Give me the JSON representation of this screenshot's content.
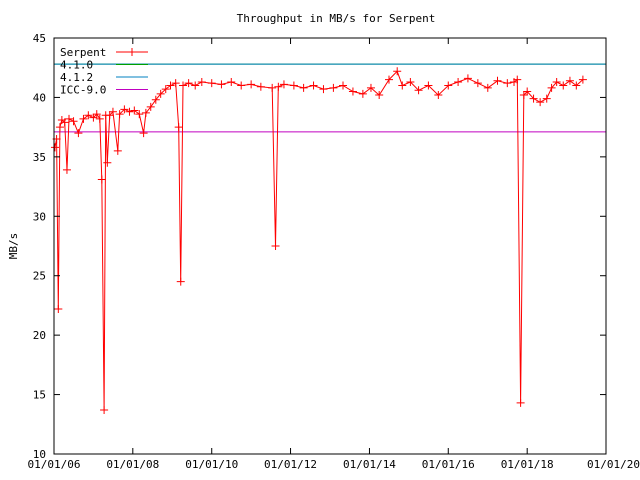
{
  "chart_data": {
    "type": "line",
    "title": "Throughput in MB/s for Serpent",
    "xlabel": "",
    "ylabel": "MB/s",
    "xlim": [
      "2006-01-01",
      "2020-01-01"
    ],
    "ylim": [
      10,
      45
    ],
    "x_ticks": [
      "01/01/06",
      "01/01/08",
      "01/01/10",
      "01/01/12",
      "01/01/14",
      "01/01/16",
      "01/01/18",
      "01/01/20"
    ],
    "y_ticks": [
      10,
      15,
      20,
      25,
      30,
      35,
      40,
      45
    ],
    "grid": false,
    "legend": "top-left",
    "series": [
      {
        "name": "Serpent",
        "kind": "line-with-markers",
        "marker": "plus",
        "color": "#ff0000",
        "points": [
          [
            "2006-01-10",
            35.8
          ],
          [
            "2006-01-25",
            36.5
          ],
          [
            "2006-02-10",
            22.2
          ],
          [
            "2006-02-25",
            37.5
          ],
          [
            "2006-03-15",
            38.1
          ],
          [
            "2006-04-10",
            37.9
          ],
          [
            "2006-05-01",
            33.9
          ],
          [
            "2006-05-20",
            38.2
          ],
          [
            "2006-07-01",
            38.0
          ],
          [
            "2006-08-15",
            37.0
          ],
          [
            "2006-10-01",
            38.2
          ],
          [
            "2006-11-15",
            38.5
          ],
          [
            "2007-01-01",
            38.3
          ],
          [
            "2007-02-01",
            38.6
          ],
          [
            "2007-03-01",
            38.2
          ],
          [
            "2007-03-20",
            33.1
          ],
          [
            "2007-04-10",
            13.7
          ],
          [
            "2007-04-25",
            38.5
          ],
          [
            "2007-05-10",
            34.5
          ],
          [
            "2007-06-01",
            38.5
          ],
          [
            "2007-07-01",
            38.8
          ],
          [
            "2007-08-15",
            35.5
          ],
          [
            "2007-09-01",
            38.6
          ],
          [
            "2007-10-15",
            39.0
          ],
          [
            "2007-12-01",
            38.8
          ],
          [
            "2008-01-15",
            38.9
          ],
          [
            "2008-03-01",
            38.6
          ],
          [
            "2008-04-10",
            37.0
          ],
          [
            "2008-05-01",
            38.7
          ],
          [
            "2008-06-15",
            39.2
          ],
          [
            "2008-08-01",
            39.8
          ],
          [
            "2008-09-15",
            40.3
          ],
          [
            "2008-11-01",
            40.7
          ],
          [
            "2008-12-15",
            41.0
          ],
          [
            "2009-02-01",
            41.2
          ],
          [
            "2009-03-01",
            37.5
          ],
          [
            "2009-03-20",
            24.5
          ],
          [
            "2009-04-10",
            41.0
          ],
          [
            "2009-06-01",
            41.2
          ],
          [
            "2009-08-01",
            41.0
          ],
          [
            "2009-10-01",
            41.3
          ],
          [
            "2010-01-01",
            41.2
          ],
          [
            "2010-04-01",
            41.1
          ],
          [
            "2010-07-01",
            41.3
          ],
          [
            "2010-10-01",
            41.0
          ],
          [
            "2011-01-01",
            41.1
          ],
          [
            "2011-04-01",
            40.9
          ],
          [
            "2011-07-15",
            40.8
          ],
          [
            "2011-08-15",
            27.5
          ],
          [
            "2011-09-10",
            40.9
          ],
          [
            "2011-11-01",
            41.1
          ],
          [
            "2012-02-01",
            41.0
          ],
          [
            "2012-05-01",
            40.8
          ],
          [
            "2012-08-01",
            41.0
          ],
          [
            "2012-11-01",
            40.7
          ],
          [
            "2013-02-01",
            40.8
          ],
          [
            "2013-05-01",
            41.0
          ],
          [
            "2013-08-01",
            40.5
          ],
          [
            "2013-11-01",
            40.3
          ],
          [
            "2014-01-15",
            40.8
          ],
          [
            "2014-04-01",
            40.2
          ],
          [
            "2014-07-01",
            41.5
          ],
          [
            "2014-09-15",
            42.2
          ],
          [
            "2014-11-01",
            41.0
          ],
          [
            "2015-01-15",
            41.3
          ],
          [
            "2015-04-01",
            40.6
          ],
          [
            "2015-07-01",
            41.0
          ],
          [
            "2015-10-01",
            40.2
          ],
          [
            "2016-01-01",
            41.0
          ],
          [
            "2016-04-01",
            41.3
          ],
          [
            "2016-07-01",
            41.6
          ],
          [
            "2016-10-01",
            41.2
          ],
          [
            "2017-01-01",
            40.8
          ],
          [
            "2017-04-01",
            41.4
          ],
          [
            "2017-07-01",
            41.2
          ],
          [
            "2017-09-01",
            41.3
          ],
          [
            "2017-10-01",
            41.5
          ],
          [
            "2017-11-01",
            14.3
          ],
          [
            "2017-12-01",
            40.2
          ],
          [
            "2018-01-01",
            40.5
          ],
          [
            "2018-03-01",
            39.9
          ],
          [
            "2018-05-01",
            39.6
          ],
          [
            "2018-07-01",
            39.9
          ],
          [
            "2018-08-15",
            40.8
          ],
          [
            "2018-10-01",
            41.3
          ],
          [
            "2018-12-01",
            41.0
          ],
          [
            "2019-02-01",
            41.4
          ],
          [
            "2019-04-01",
            41.0
          ],
          [
            "2019-06-01",
            41.5
          ]
        ]
      },
      {
        "name": "4.1.0",
        "kind": "hline",
        "value": 42.8,
        "color": "#00a000"
      },
      {
        "name": "4.1.2",
        "kind": "hline",
        "value": 42.8,
        "color": "#0080c0"
      },
      {
        "name": "ICC-9.0",
        "kind": "hline",
        "value": 37.1,
        "color": "#c000c0"
      }
    ]
  }
}
